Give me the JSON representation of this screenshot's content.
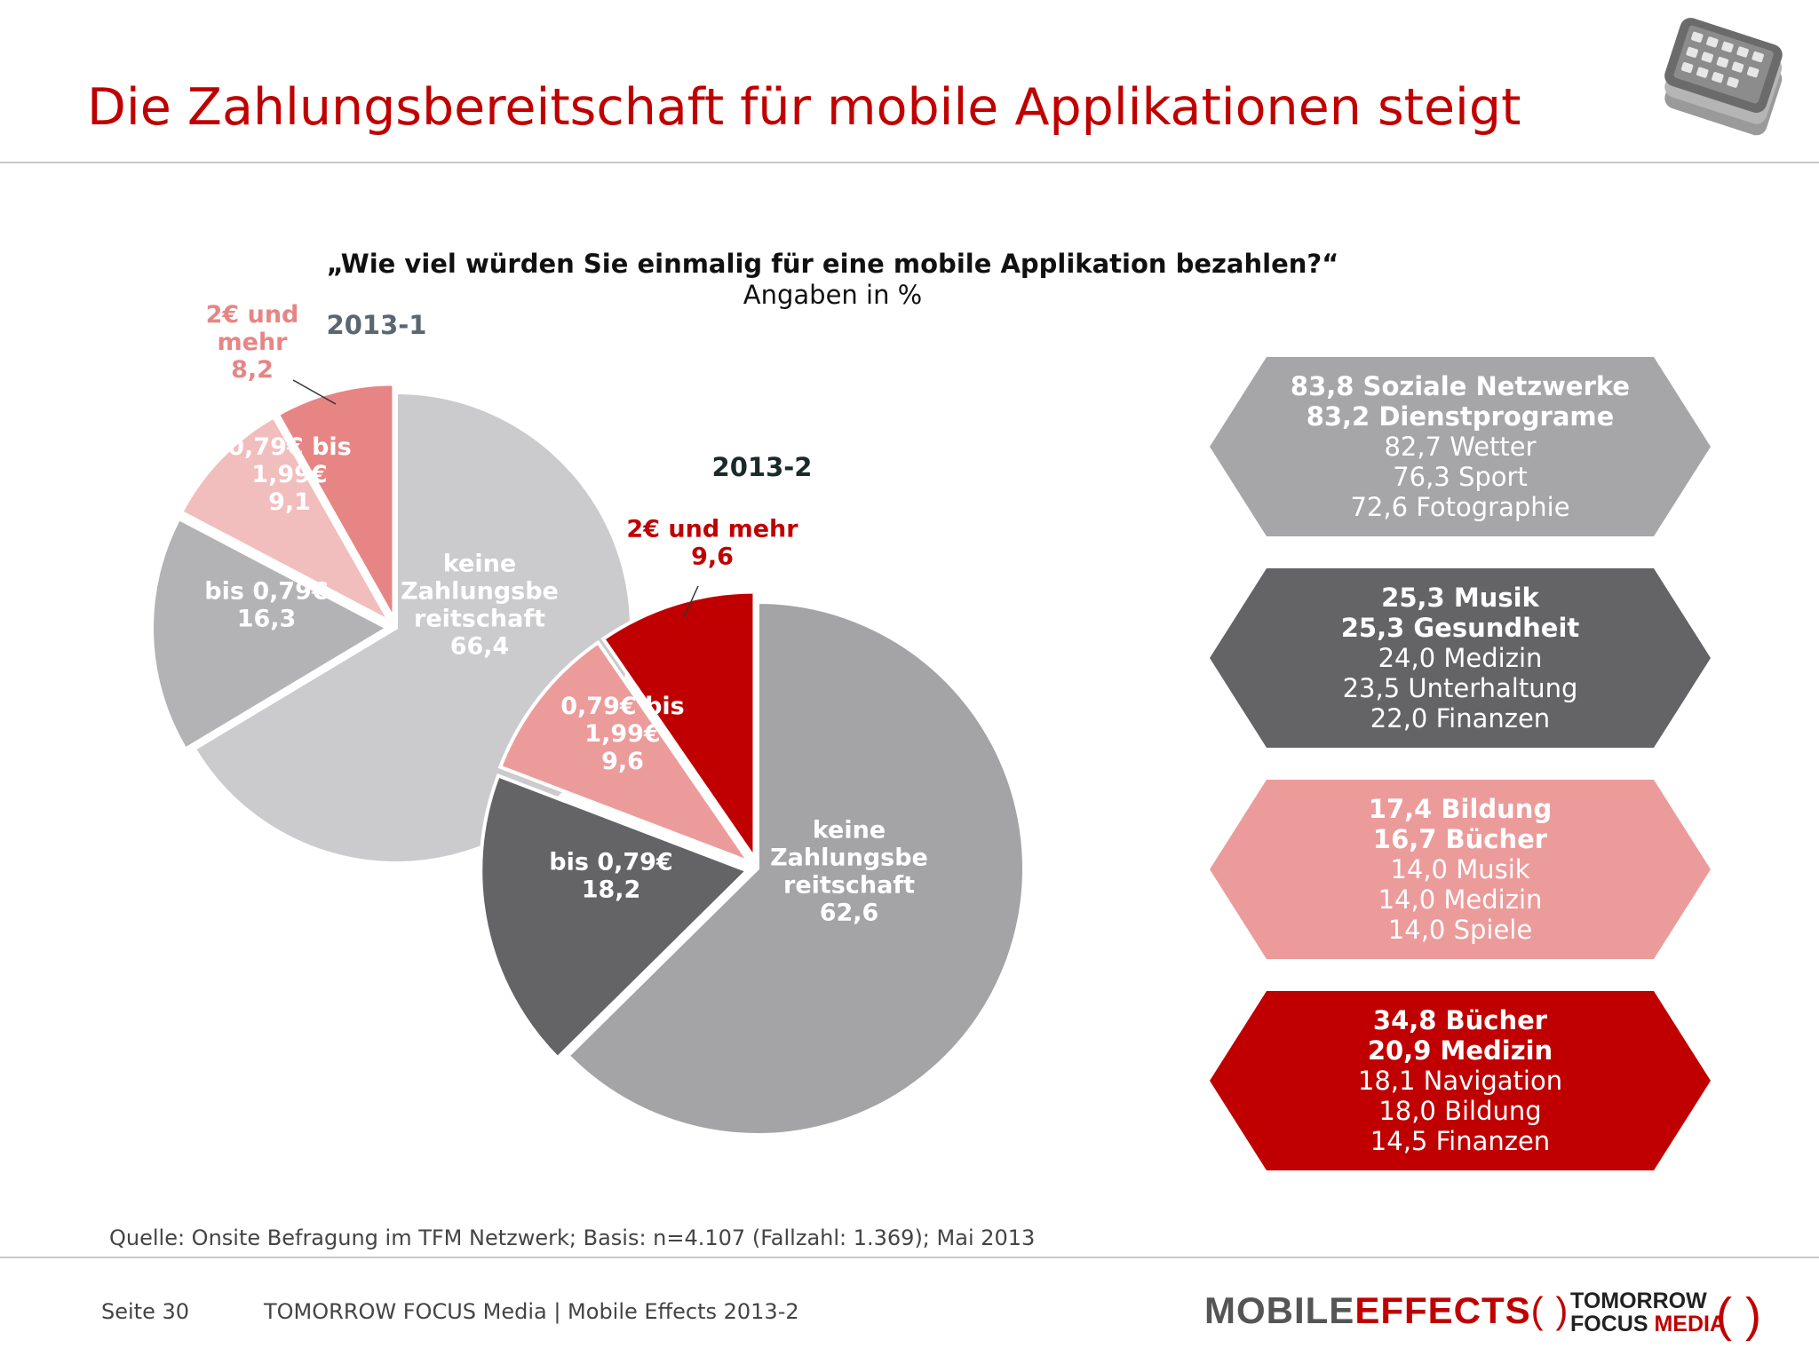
{
  "title": "Die Zahlungsbereitschaft für mobile Applikationen steigt",
  "question": "„Wie viel würden Sie einmalig für eine mobile Applikation bezahlen?“",
  "unit_note": "Angaben in %",
  "chart_data": [
    {
      "type": "pie",
      "title": "2013-1",
      "slices": [
        {
          "label_lines": [
            "keine",
            "Zahlungsbe",
            "reitschaft"
          ],
          "value": 66.4,
          "display": "66,4",
          "color": "#cbcacc"
        },
        {
          "label_lines": [
            "bis 0,79€"
          ],
          "value": 16.3,
          "display": "16,3",
          "color": "#b3b2b4"
        },
        {
          "label_lines": [
            "0,79€ bis",
            "1,99€"
          ],
          "value": 9.1,
          "display": "9,1",
          "color": "#f2bdbd"
        },
        {
          "label_lines": [
            "2€ und",
            "mehr"
          ],
          "value": 8.2,
          "display": "8,2",
          "color": "#e78585"
        }
      ]
    },
    {
      "type": "pie",
      "title": "2013-2",
      "slices": [
        {
          "label_lines": [
            "keine",
            "Zahlungsbe",
            "reitschaft"
          ],
          "value": 62.6,
          "display": "62,6",
          "color": "#a4a3a5"
        },
        {
          "label_lines": [
            "bis 0,79€"
          ],
          "value": 18.2,
          "display": "18,2",
          "color": "#646366"
        },
        {
          "label_lines": [
            "0,79€ bis",
            "1,99€"
          ],
          "value": 9.6,
          "display": "9,6",
          "color": "#ec9b9b"
        },
        {
          "label_lines": [
            "2€ und mehr"
          ],
          "value": 9.6,
          "display": "9,6",
          "color": "#c00000"
        }
      ]
    }
  ],
  "category_boxes": [
    {
      "color": "#a6a5a7",
      "text_color": "#ffffff",
      "lines": [
        {
          "text": "83,8 Soziale Netzwerke",
          "bold": true
        },
        {
          "text": "83,2 Dienstprograme",
          "bold": true
        },
        {
          "text": "82,7 Wetter",
          "bold": false
        },
        {
          "text": "76,3 Sport",
          "bold": false
        },
        {
          "text": "72,6 Fotographie",
          "bold": false
        }
      ]
    },
    {
      "color": "#646366",
      "text_color": "#ffffff",
      "lines": [
        {
          "text": "25,3 Musik",
          "bold": true
        },
        {
          "text": "25,3 Gesundheit",
          "bold": true
        },
        {
          "text": "24,0 Medizin",
          "bold": false
        },
        {
          "text": "23,5 Unterhaltung",
          "bold": false
        },
        {
          "text": "22,0 Finanzen",
          "bold": false
        }
      ]
    },
    {
      "color": "#ec9b9b",
      "text_color": "#ffffff",
      "lines": [
        {
          "text": "17,4 Bildung",
          "bold": true
        },
        {
          "text": "16,7 Bücher",
          "bold": true
        },
        {
          "text": "14,0 Musik",
          "bold": false
        },
        {
          "text": "14,0 Medizin",
          "bold": false
        },
        {
          "text": "14,0 Spiele",
          "bold": false
        }
      ]
    },
    {
      "color": "#c00000",
      "text_color": "#ffffff",
      "lines": [
        {
          "text": "34,8 Bücher",
          "bold": true
        },
        {
          "text": "20,9 Medizin",
          "bold": true
        },
        {
          "text": "18,1 Navigation",
          "bold": false
        },
        {
          "text": "18,0 Bildung",
          "bold": false
        },
        {
          "text": "14,5 Finanzen",
          "bold": false
        }
      ]
    }
  ],
  "source": "Quelle: Onsite Befragung im TFM Netzwerk; Basis: n=4.107 (Fallzahl: 1.369); Mai 2013",
  "footer": {
    "page": "Seite 30",
    "company": "TOMORROW FOCUS Media  |  Mobile Effects 2013-2",
    "logo_mobile": "MOBILE",
    "logo_effects": "EFFECTS",
    "logo_tomorrow": "TOMORROW",
    "logo_focus": "FOCUS",
    "logo_media": "MEDIA"
  }
}
